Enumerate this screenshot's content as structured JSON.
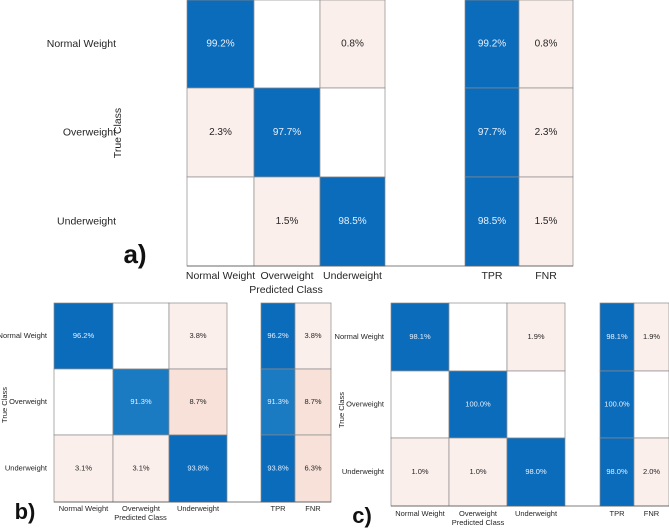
{
  "chart_data": [
    {
      "type": "heatmap",
      "panel_label": "a)",
      "xlabel": "Predicted Class",
      "ylabel": "True Class",
      "classes": [
        "Normal Weight",
        "Overweight",
        "Underweight"
      ],
      "matrix": [
        [
          99.2,
          null,
          0.8
        ],
        [
          2.3,
          97.7,
          null
        ],
        [
          null,
          1.5,
          98.5
        ]
      ],
      "summary_labels": [
        "TPR",
        "FNR"
      ],
      "summary": [
        [
          99.2,
          0.8
        ],
        [
          97.7,
          2.3
        ],
        [
          98.5,
          1.5
        ]
      ]
    },
    {
      "type": "heatmap",
      "panel_label": "b)",
      "xlabel": "Predicted Class",
      "ylabel": "True Class",
      "classes": [
        "Normal Weight",
        "Overweight",
        "Underweight"
      ],
      "matrix": [
        [
          96.2,
          null,
          3.8
        ],
        [
          null,
          91.3,
          8.7
        ],
        [
          3.1,
          3.1,
          93.8
        ]
      ],
      "summary_labels": [
        "TPR",
        "FNR"
      ],
      "summary": [
        [
          96.2,
          3.8
        ],
        [
          91.3,
          8.7
        ],
        [
          93.8,
          6.3
        ]
      ]
    },
    {
      "type": "heatmap",
      "panel_label": "c)",
      "xlabel": "Predicted Class",
      "ylabel": "True Class",
      "classes": [
        "Normal Weight",
        "Overweight",
        "Underweight"
      ],
      "matrix": [
        [
          98.1,
          null,
          1.9
        ],
        [
          null,
          100.0,
          null
        ],
        [
          1.0,
          1.0,
          98.0
        ]
      ],
      "summary_labels": [
        "TPR",
        "FNR"
      ],
      "summary": [
        [
          98.1,
          1.9
        ],
        [
          100.0,
          null
        ],
        [
          98.0,
          2.0
        ]
      ]
    }
  ],
  "colors": {
    "high": "#0b6cbc",
    "low": "#fbefeb",
    "mid_low": "#f7e1d8",
    "grid": "#8a8a8a",
    "text_dark": "#262626",
    "text_light": "#e8f0fa"
  }
}
